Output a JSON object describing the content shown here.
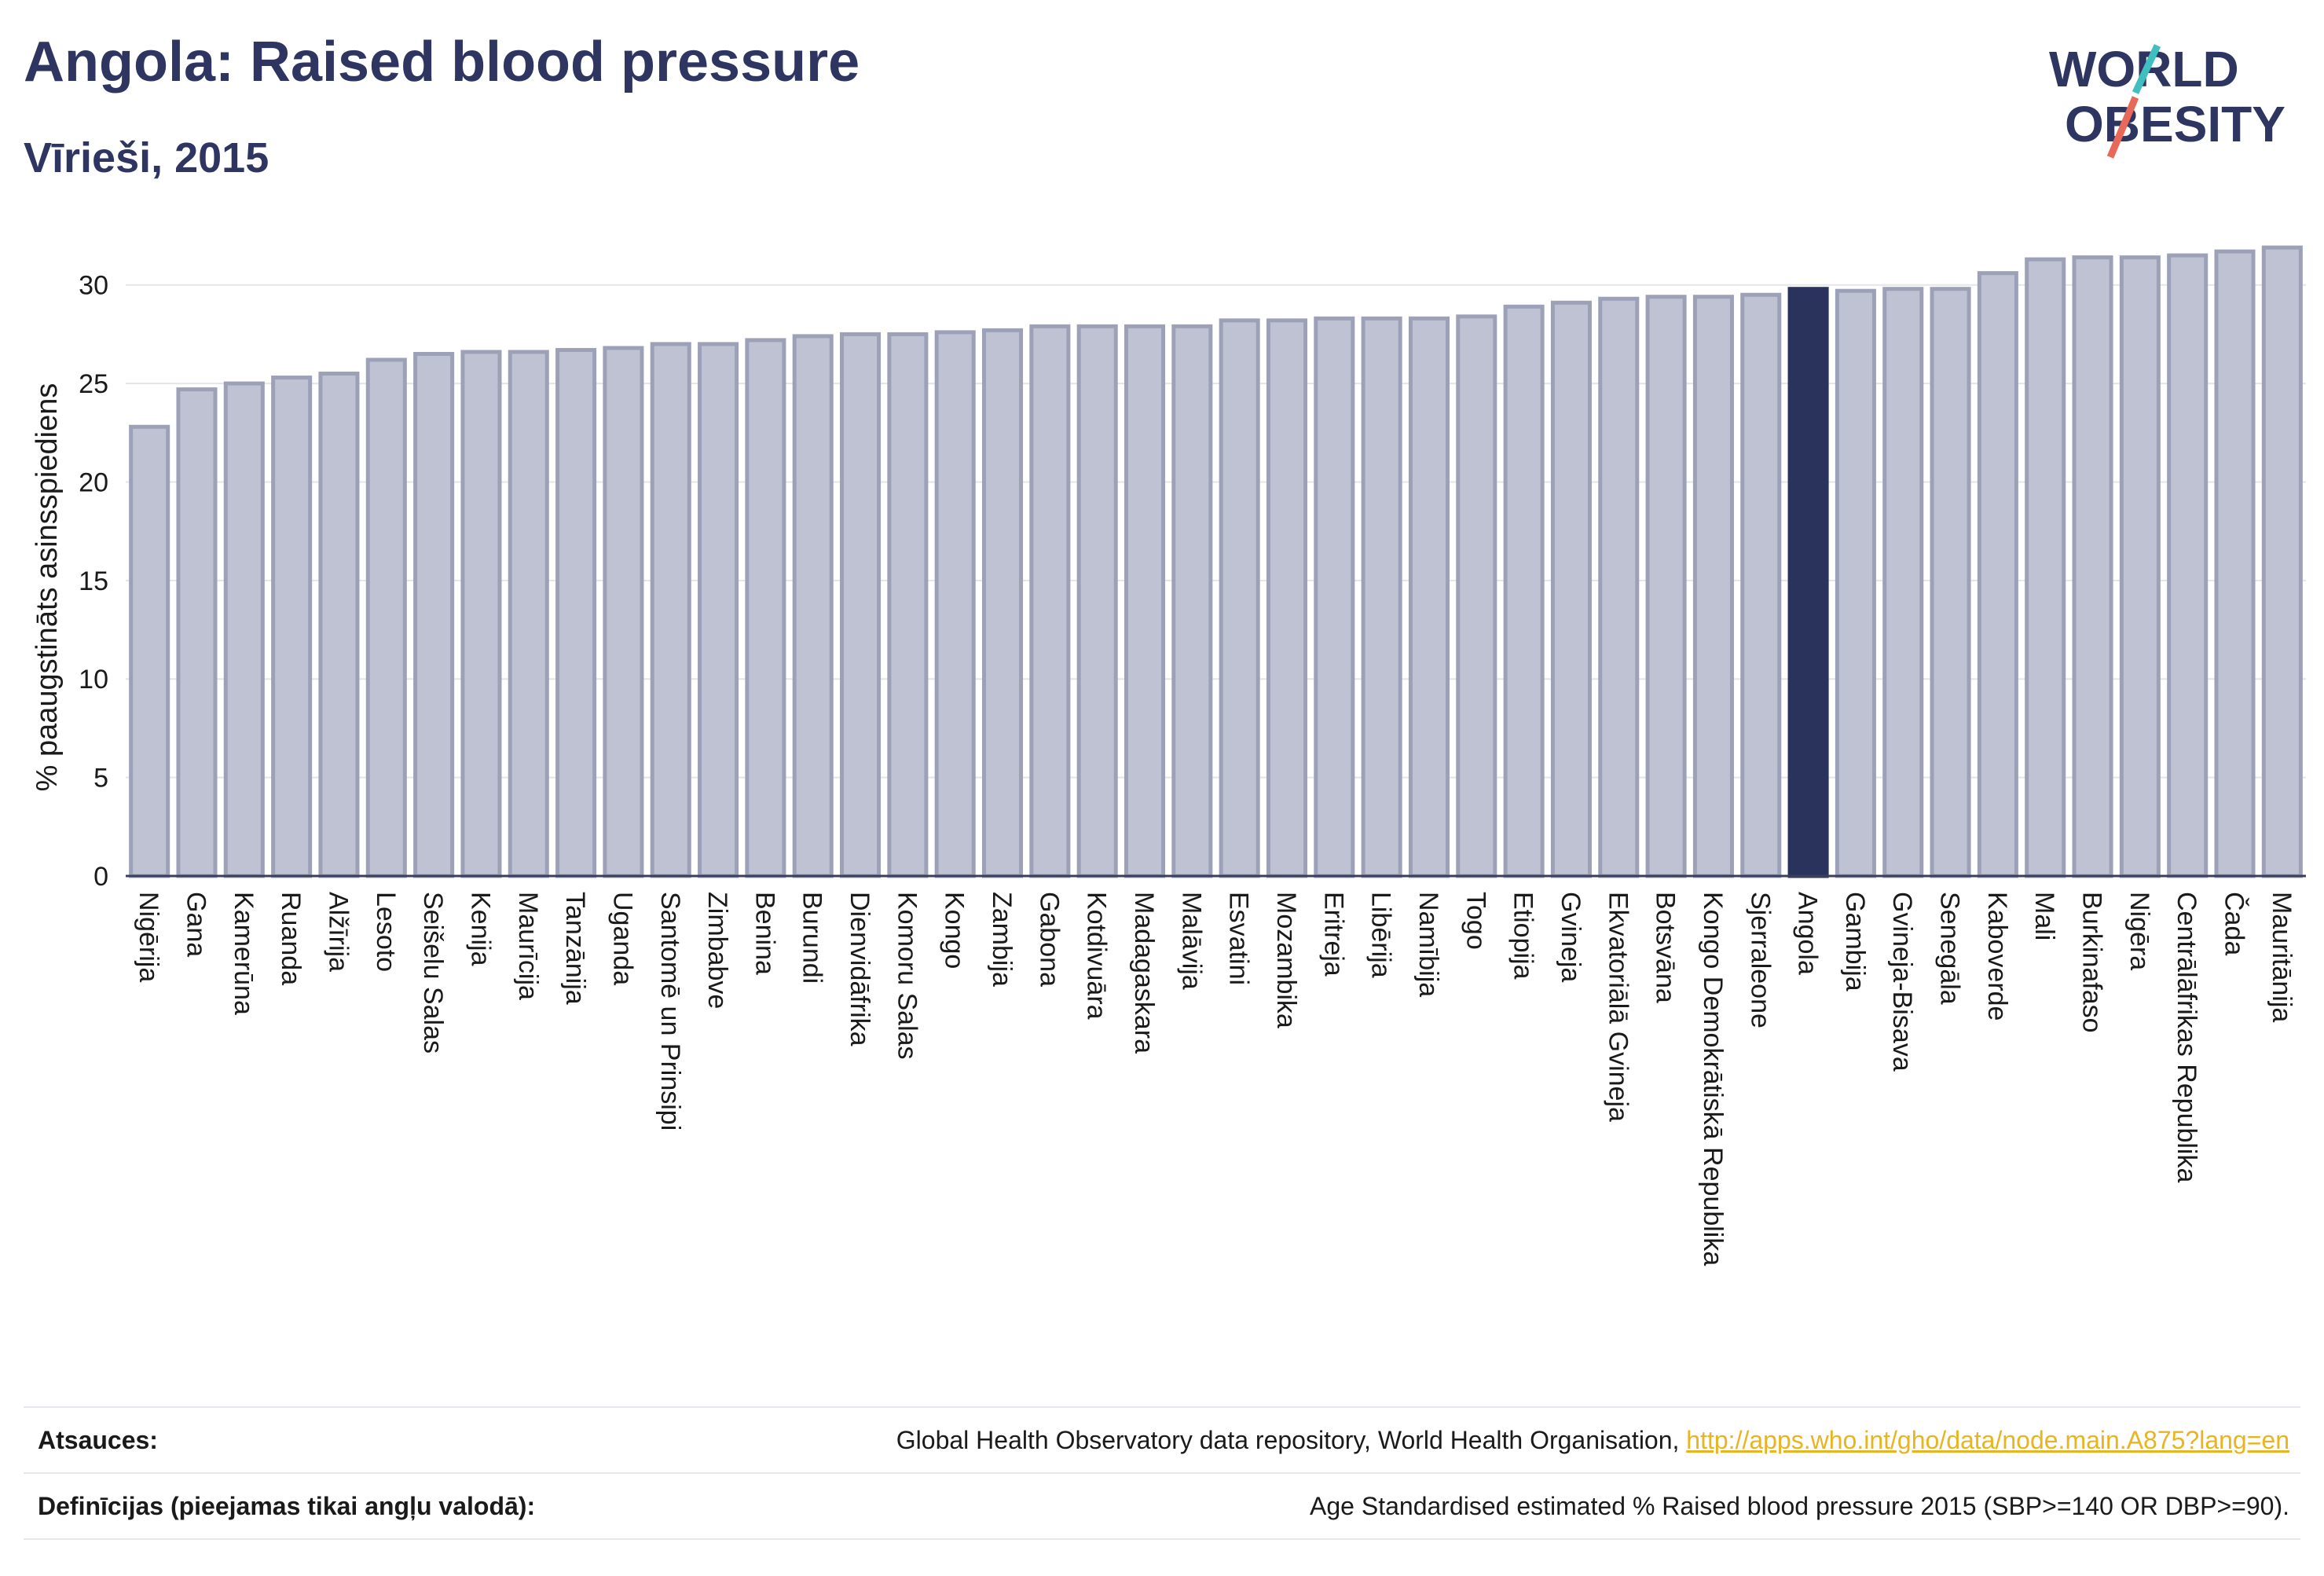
{
  "header": {
    "title": "Angola: Raised blood pressure",
    "subtitle": "Vīrieši, 2015"
  },
  "logo": {
    "line1": "WORLD",
    "line2": "OBESITY"
  },
  "chart_data": {
    "type": "bar",
    "title": "Angola: Raised blood pressure",
    "subtitle": "Vīrieši, 2015",
    "ylabel": "% paaugstināts asinsspiediens",
    "xlabel": "",
    "ylim": [
      0,
      32.5
    ],
    "yticks": [
      0,
      5,
      10,
      15,
      20,
      25,
      30
    ],
    "grid": true,
    "highlight": "Angola",
    "colors": {
      "bar": "#bfc2d2",
      "bar_edge": "#9da1b8",
      "highlight": "#29335c",
      "grid": "#e3e5eb"
    },
    "categories": [
      "Nigērija",
      "Gana",
      "Kamerūna",
      "Ruanda",
      "Alžīrija",
      "Lesoto",
      "Seišelu Salas",
      "Kenija",
      "Maurīcija",
      "Tanzānija",
      "Uganda",
      "Santomē un Prinsipi",
      "Zimbabve",
      "Benina",
      "Burundi",
      "Dienvidāfrika",
      "Komoru Salas",
      "Kongo",
      "Zambija",
      "Gabona",
      "Kotdivuāra",
      "Madagaskara",
      "Malāvija",
      "Esvatini",
      "Mozambika",
      "Eritreja",
      "Libērija",
      "Namībija",
      "Togo",
      "Etiopija",
      "Gvineja",
      "Ekvatoriālā Gvineja",
      "Botsvāna",
      "Kongo Demokrātiskā Republika",
      "Sjerraleone",
      "Angola",
      "Gambija",
      "Gvineja-Bisava",
      "Senegāla",
      "Kaboverde",
      "Mali",
      "Burkinafaso",
      "Nigēra",
      "Centrālāfrikas Republika",
      "Čada",
      "Mauritānija"
    ],
    "values": [
      22.8,
      24.7,
      25.0,
      25.3,
      25.5,
      26.2,
      26.5,
      26.6,
      26.6,
      26.7,
      26.8,
      27.0,
      27.0,
      27.2,
      27.4,
      27.5,
      27.5,
      27.6,
      27.7,
      27.9,
      27.9,
      27.9,
      27.9,
      28.2,
      28.2,
      28.3,
      28.3,
      28.3,
      28.4,
      28.9,
      29.1,
      29.3,
      29.4,
      29.4,
      29.5,
      29.8,
      29.7,
      29.8,
      29.8,
      30.6,
      31.3,
      31.4,
      31.4,
      31.5,
      31.7,
      31.9
    ]
  },
  "sources": {
    "label": "Atsauces:",
    "text": "Global Health Observatory data repository, World Health Organisation, ",
    "link": "http://apps.who.int/gho/data/node.main.A875?lang=en"
  },
  "definitions": {
    "label": "Definīcijas (pieejamas tikai angļu valodā):",
    "text": "Age Standardised estimated % Raised blood pressure 2015 (SBP>=140 OR DBP>=90)."
  }
}
